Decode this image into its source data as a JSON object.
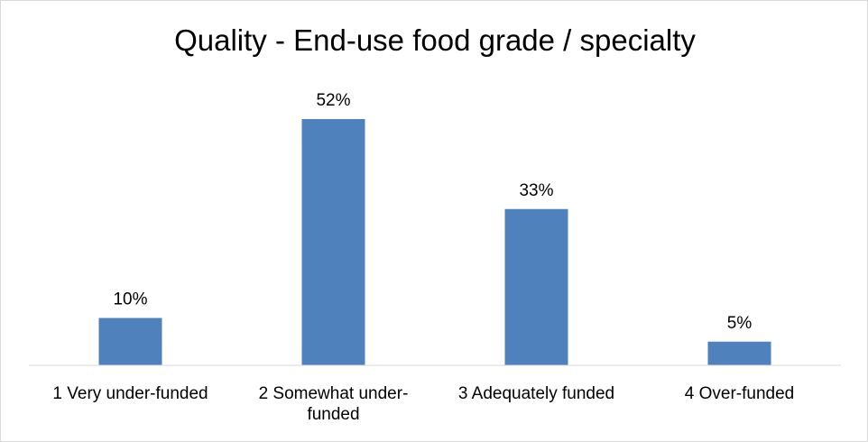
{
  "chart_data": {
    "type": "bar",
    "title": "Quality - End-use food grade / specialty",
    "categories": [
      [
        "1 Very under-funded"
      ],
      [
        "2 Somewhat under-",
        "funded"
      ],
      [
        "3 Adequately funded"
      ],
      [
        "4 Over-funded"
      ]
    ],
    "values": [
      10,
      52,
      33,
      5
    ],
    "value_labels": [
      "10%",
      "52%",
      "33%",
      "5%"
    ],
    "unit": "%",
    "ylim": [
      0,
      60
    ],
    "grid": false,
    "legend": "none",
    "colors": {
      "bar": "#4f81bd",
      "axis": "#d9d9d9"
    }
  }
}
